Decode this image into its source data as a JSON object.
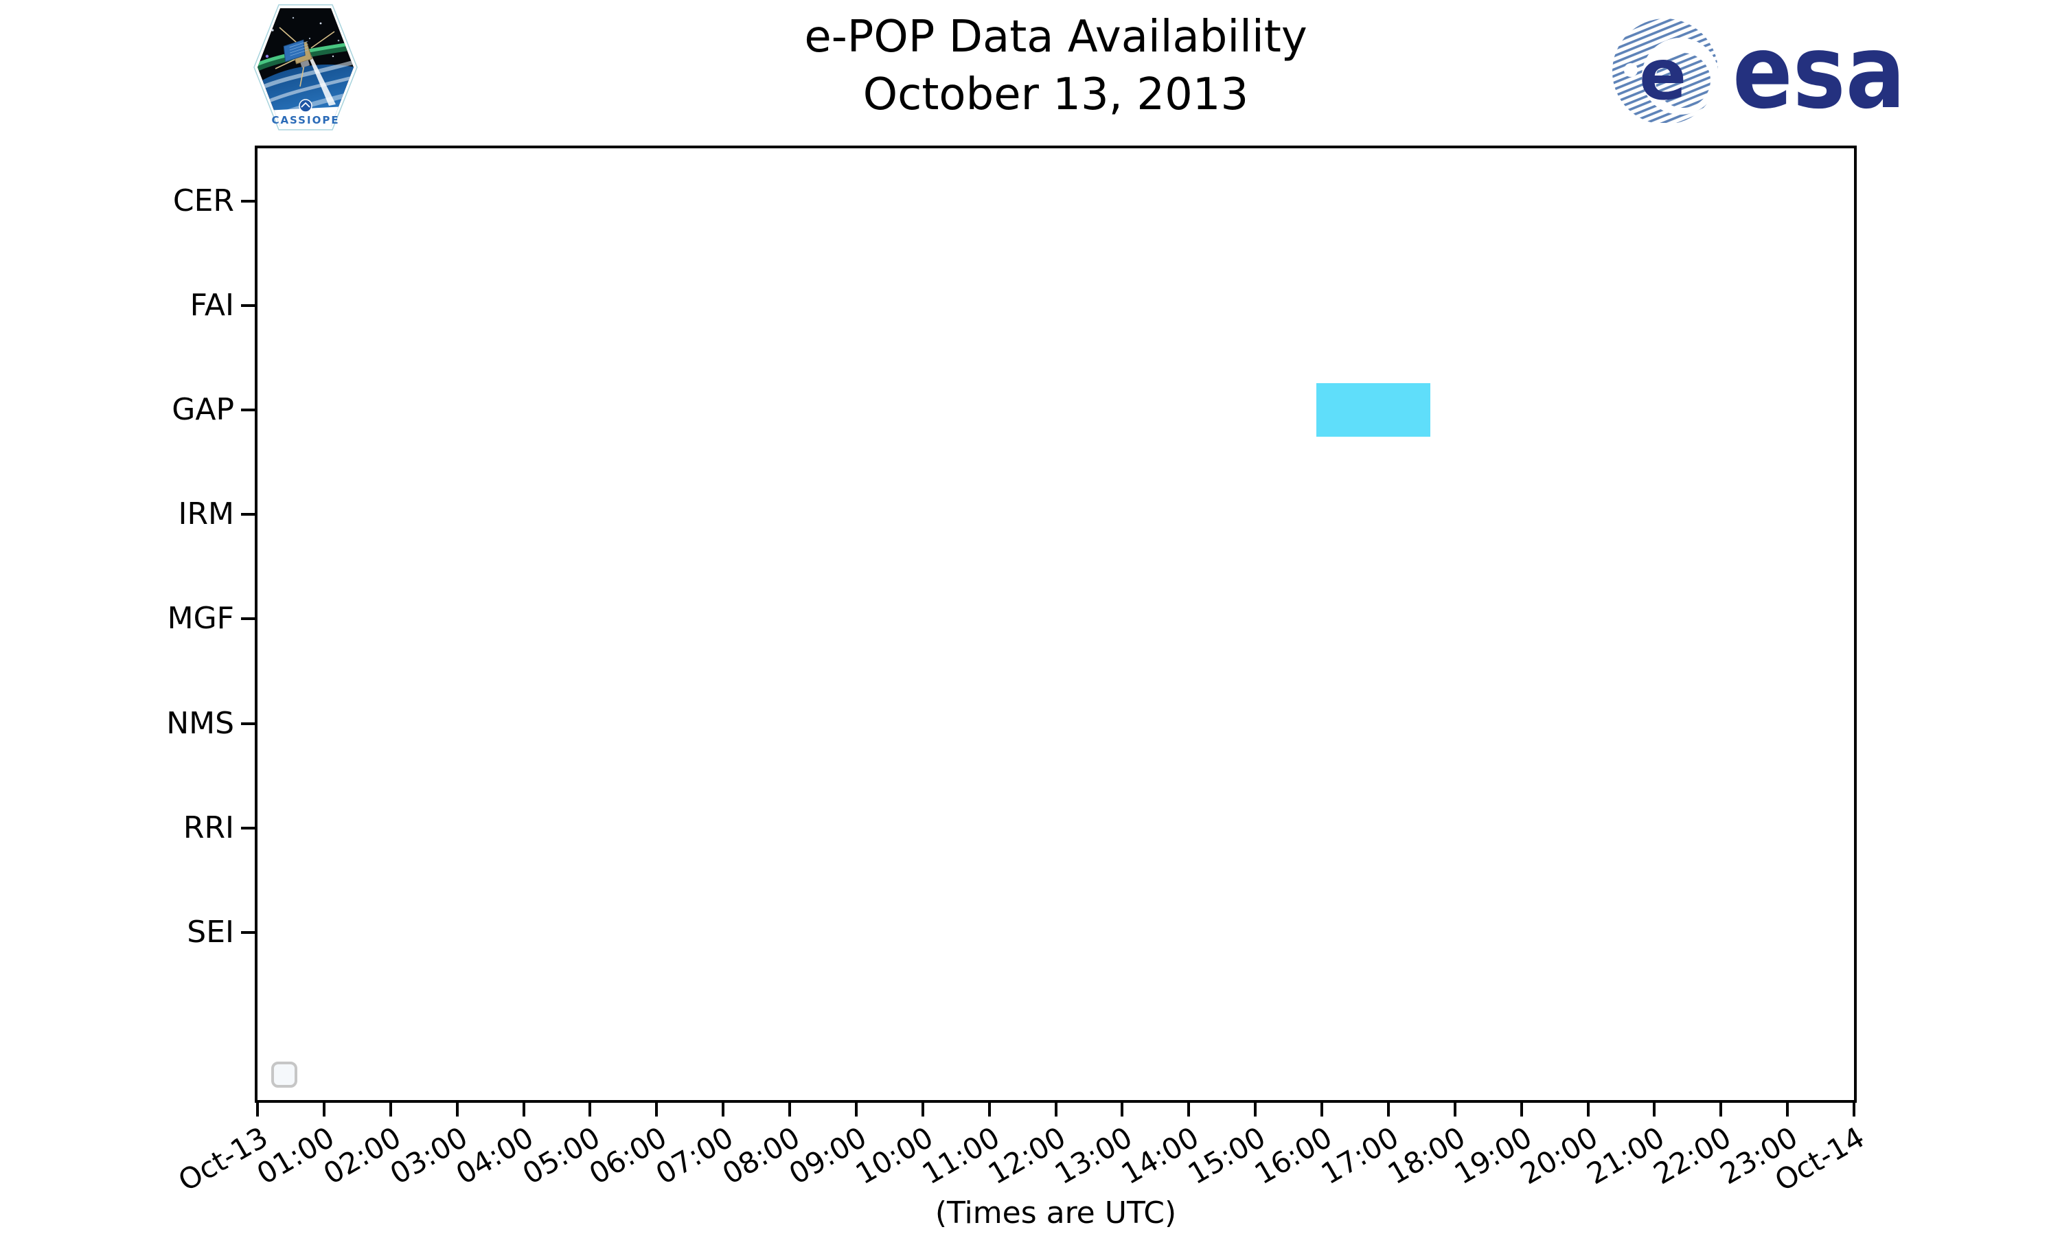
{
  "header": {
    "cassiope_label": "CASSIOPE",
    "esa_wordmark": "esa",
    "esa_globe_letter": "e"
  },
  "chart_data": {
    "type": "bar",
    "subtype": "horizontal-timeline-gantt",
    "title": "e-POP Data Availability",
    "subtitle": "October 13, 2013",
    "xlabel": "(Times are UTC)",
    "categories": [
      "CER",
      "FAI",
      "GAP",
      "IRM",
      "MGF",
      "NMS",
      "RRI",
      "SEI"
    ],
    "x_tick_labels": [
      "Oct-13",
      "01:00",
      "02:00",
      "03:00",
      "04:00",
      "05:00",
      "06:00",
      "07:00",
      "08:00",
      "09:00",
      "10:00",
      "11:00",
      "12:00",
      "13:00",
      "14:00",
      "15:00",
      "16:00",
      "17:00",
      "18:00",
      "19:00",
      "20:00",
      "21:00",
      "22:00",
      "23:00",
      "Oct-14"
    ],
    "x_range_hours": [
      0,
      24
    ],
    "grid": false,
    "bars": [
      {
        "category": "GAP",
        "start_hour": 15.92,
        "end_hour": 17.63,
        "start_time": "15:55",
        "end_time": "17:38",
        "color": "#5FDEFA"
      }
    ],
    "legend": {
      "visible": true,
      "position": "lower-left",
      "entries": []
    }
  },
  "colors": {
    "bar_fill": "#5FDEFA",
    "axis": "#000000",
    "background": "#FFFFFF",
    "esa_navy": "#24317F",
    "esa_stripe": "#5E83B8",
    "legend_box_fill": "#F5F8FB",
    "legend_box_border": "#C6C6C6",
    "cassiope_text": "#2B6BB8"
  }
}
